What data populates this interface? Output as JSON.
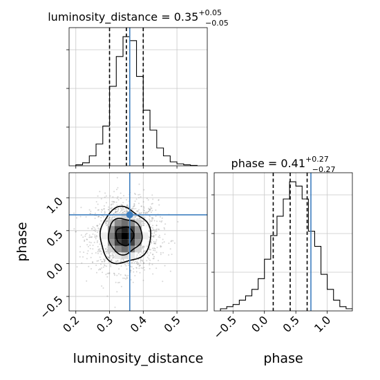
{
  "chart_data": {
    "type": "corner",
    "parameters": [
      "luminosity_distance",
      "phase"
    ],
    "truth": {
      "luminosity_distance": 0.36,
      "phase": 0.74
    },
    "panels": {
      "ld_hist": {
        "title_prefix": "luminosity_distance = ",
        "median": "0.35",
        "plus": "+0.05",
        "minus": "−0.05",
        "quantiles": [
          0.3,
          0.35,
          0.4
        ],
        "xlim": [
          0.18,
          0.59
        ],
        "bin_edges": [
          0.2,
          0.22,
          0.24,
          0.26,
          0.28,
          0.3,
          0.32,
          0.34,
          0.36,
          0.38,
          0.4,
          0.42,
          0.44,
          0.46,
          0.48,
          0.5,
          0.52,
          0.54,
          0.56
        ],
        "counts": [
          0.5,
          1.5,
          5,
          11,
          20,
          40,
          55,
          65,
          63,
          45,
          28,
          18,
          9,
          5,
          2,
          1,
          0.5,
          0.2
        ]
      },
      "phase_hist": {
        "title_prefix": "phase = ",
        "median": "0.41",
        "plus": "+0.27",
        "minus": "−0.27",
        "quantiles": [
          0.14,
          0.41,
          0.68
        ],
        "xlim": [
          -0.8,
          1.4
        ],
        "bin_edges": [
          -0.7,
          -0.6,
          -0.5,
          -0.4,
          -0.3,
          -0.2,
          -0.1,
          0.0,
          0.1,
          0.2,
          0.3,
          0.4,
          0.5,
          0.6,
          0.7,
          0.8,
          0.9,
          1.0,
          1.1,
          1.2,
          1.3,
          1.4
        ],
        "counts": [
          1,
          2,
          3,
          5,
          7,
          10,
          15,
          24,
          35,
          44,
          52,
          60,
          58,
          52,
          37,
          30,
          17,
          10,
          5,
          2,
          1
        ]
      },
      "scatter_2d": {
        "xlim": [
          0.18,
          0.59
        ],
        "ylim": [
          -0.72,
          1.38
        ],
        "contour_center": [
          0.345,
          0.42
        ],
        "contour_radii": [
          [
            0.026,
            0.14
          ],
          [
            0.05,
            0.27
          ],
          [
            0.075,
            0.42
          ]
        ]
      }
    },
    "ld_ticks": [
      "0.2",
      "0.3",
      "0.4",
      "0.5"
    ],
    "ld_tick_values": [
      0.2,
      0.3,
      0.4,
      0.5
    ],
    "phase_ticks": [
      "−0.5",
      "0.0",
      "0.5",
      "1.0"
    ],
    "phase_tick_values": [
      -0.5,
      0.0,
      0.5,
      1.0
    ],
    "xlabel_left": "luminosity_distance",
    "xlabel_right": "phase",
    "ylabel_left": "phase"
  }
}
